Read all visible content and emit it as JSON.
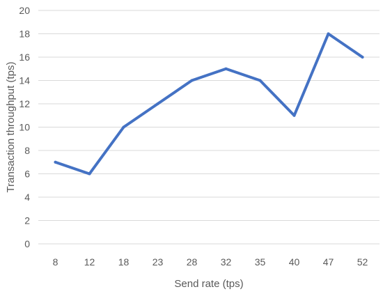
{
  "chart_data": {
    "type": "line",
    "title": "",
    "xlabel": "Send rate (tps)",
    "ylabel": "Transaction throughput (tps)",
    "categories": [
      "8",
      "12",
      "18",
      "23",
      "28",
      "32",
      "35",
      "40",
      "47",
      "52"
    ],
    "series": [
      {
        "values": [
          7,
          6,
          10,
          12,
          14,
          15,
          14,
          11,
          18,
          16
        ],
        "color": "#4472C4"
      }
    ],
    "ylim": [
      0,
      20
    ],
    "yticks": [
      0,
      2,
      4,
      6,
      8,
      10,
      12,
      14,
      16,
      18,
      20
    ],
    "grid": true,
    "legend": "none",
    "colors": {
      "line": "#4472C4",
      "grid": "#D9D9D9",
      "text": "#595959"
    }
  }
}
